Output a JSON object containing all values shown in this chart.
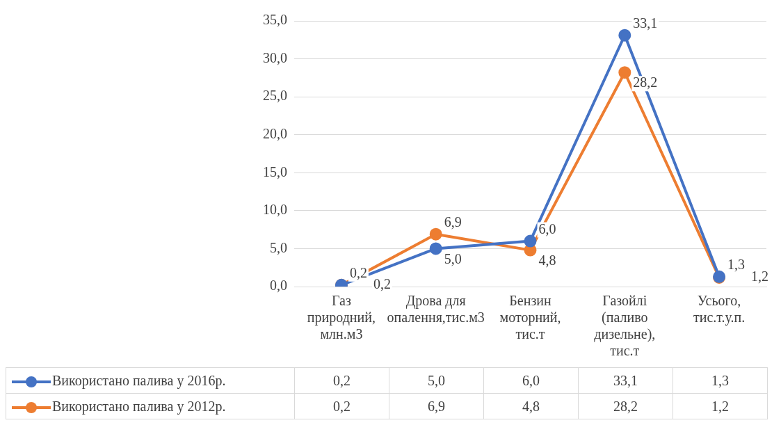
{
  "chart_data": {
    "type": "line",
    "categories": [
      "Газ природний, млн.м3",
      "Дрова для опалення,тис.м3",
      "Бензин моторний, тис.т",
      "Газойлі (паливо дизельне), тис.т",
      "Усього, тис.т.у.п."
    ],
    "series": [
      {
        "name": "Використано палива у 2016р.",
        "color": "#4472c4",
        "values": [
          0.2,
          5.0,
          6.0,
          33.1,
          1.3
        ],
        "value_labels": [
          "0,2",
          "5,0",
          "6,0",
          "33,1",
          "1,3"
        ]
      },
      {
        "name": "Використано палива у 2012р.",
        "color": "#ed7d31",
        "values": [
          0.2,
          6.9,
          4.8,
          28.2,
          1.2
        ],
        "value_labels": [
          "0,2",
          "6,9",
          "4,8",
          "28,2",
          "1,2"
        ]
      }
    ],
    "ylim": [
      0,
      35
    ],
    "yticks": [
      {
        "value": 0,
        "label": "0,0"
      },
      {
        "value": 5,
        "label": "5,0"
      },
      {
        "value": 10,
        "label": "10,0"
      },
      {
        "value": 15,
        "label": "15,0"
      },
      {
        "value": 20,
        "label": "20,0"
      },
      {
        "value": 25,
        "label": "25,0"
      },
      {
        "value": 30,
        "label": "30,0"
      },
      {
        "value": 35,
        "label": "35,0"
      }
    ],
    "grid": "y",
    "legend": "bottom",
    "marker": "circle",
    "line_style": "solid"
  }
}
